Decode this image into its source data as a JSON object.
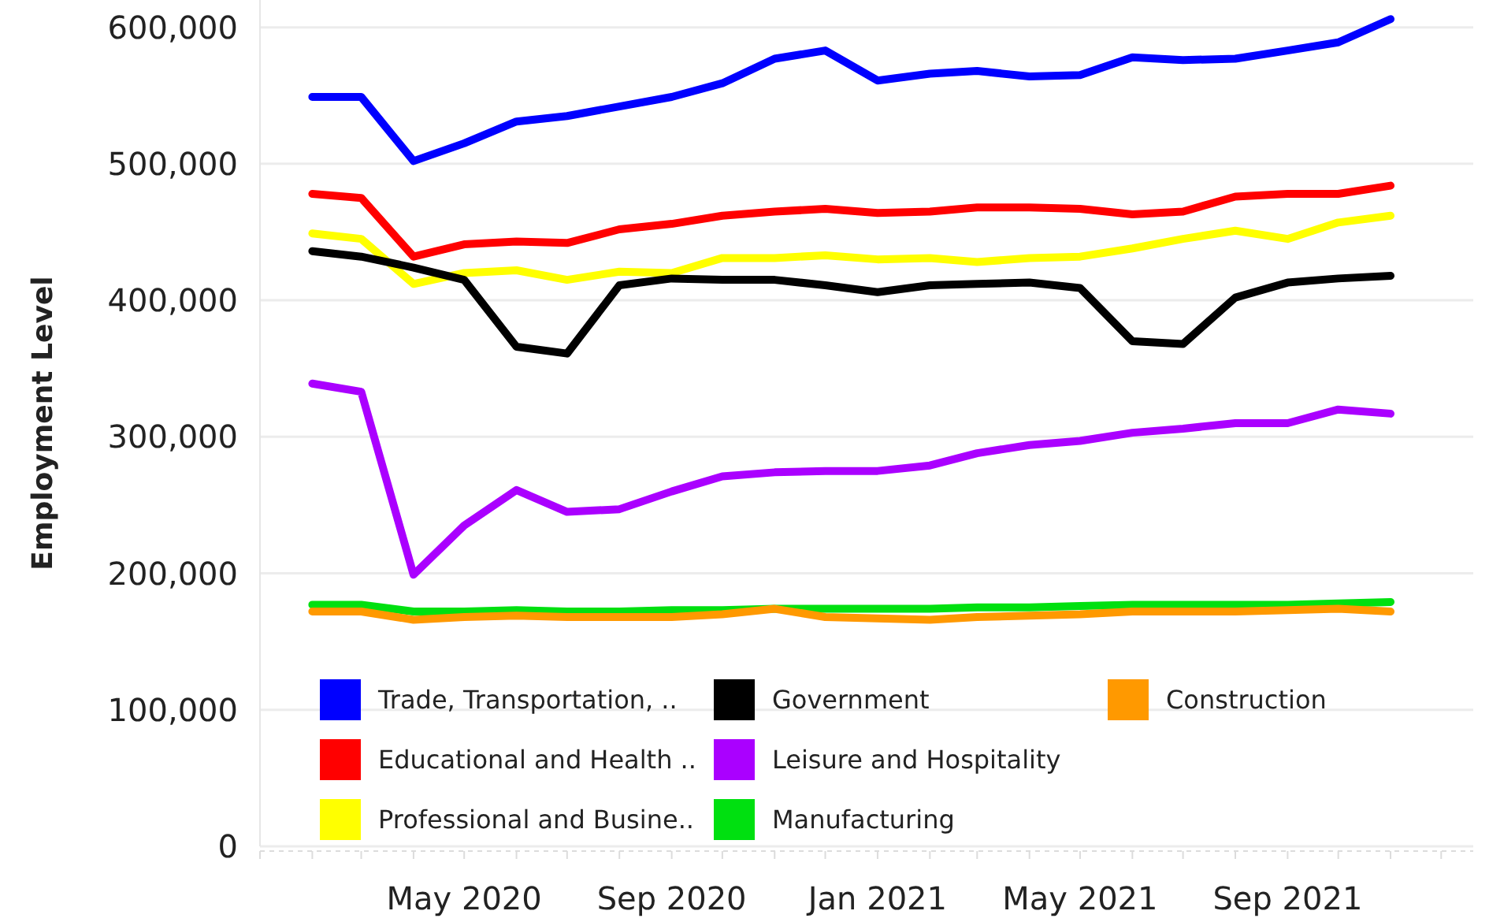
{
  "chart_data": {
    "type": "line",
    "ylabel": "Employment Level",
    "x": [
      "2020-02",
      "2020-03",
      "2020-04",
      "2020-05",
      "2020-06",
      "2020-07",
      "2020-08",
      "2020-09",
      "2020-10",
      "2020-11",
      "2020-12",
      "2021-01",
      "2021-02",
      "2021-03",
      "2021-04",
      "2021-05",
      "2021-06",
      "2021-07",
      "2021-08",
      "2021-09",
      "2021-10",
      "2021-11"
    ],
    "series": [
      {
        "name": "Trade, Transportation, ..",
        "color": "#0000ff",
        "values": [
          549000,
          549000,
          502000,
          515000,
          531000,
          535000,
          542000,
          549000,
          559000,
          577000,
          583000,
          561000,
          566000,
          568000,
          564000,
          565000,
          578000,
          576000,
          577000,
          583000,
          589000,
          606000
        ]
      },
      {
        "name": "Educational and Health ..",
        "color": "#ff0000",
        "values": [
          478000,
          475000,
          432000,
          441000,
          443000,
          442000,
          452000,
          456000,
          462000,
          465000,
          467000,
          464000,
          465000,
          468000,
          468000,
          467000,
          463000,
          465000,
          476000,
          478000,
          478000,
          484000
        ]
      },
      {
        "name": "Professional and Busine..",
        "color": "#ffff00",
        "values": [
          449000,
          445000,
          412000,
          420000,
          422000,
          415000,
          421000,
          420000,
          431000,
          431000,
          433000,
          430000,
          431000,
          428000,
          431000,
          432000,
          438000,
          445000,
          451000,
          445000,
          457000,
          462000
        ]
      },
      {
        "name": "Government",
        "color": "#000000",
        "values": [
          436000,
          432000,
          424000,
          415000,
          366000,
          361000,
          411000,
          416000,
          415000,
          415000,
          411000,
          406000,
          411000,
          412000,
          413000,
          409000,
          370000,
          368000,
          402000,
          413000,
          416000,
          418000
        ]
      },
      {
        "name": "Leisure and Hospitality",
        "color": "#aa00ff",
        "values": [
          339000,
          333000,
          199000,
          235000,
          261000,
          245000,
          247000,
          260000,
          271000,
          274000,
          275000,
          275000,
          279000,
          288000,
          294000,
          297000,
          303000,
          306000,
          310000,
          310000,
          320000,
          317000
        ]
      },
      {
        "name": "Manufacturing",
        "color": "#00e010",
        "values": [
          177000,
          177000,
          172000,
          172000,
          173000,
          172000,
          172000,
          173000,
          173000,
          174000,
          174000,
          174000,
          174000,
          175000,
          175000,
          176000,
          177000,
          177000,
          177000,
          177000,
          178000,
          179000
        ]
      },
      {
        "name": "Construction",
        "color": "#ff9900",
        "values": [
          172000,
          172000,
          166000,
          168000,
          169000,
          168000,
          168000,
          168000,
          170000,
          174000,
          168000,
          167000,
          166000,
          168000,
          169000,
          170000,
          172000,
          172000,
          172000,
          173000,
          174000,
          172000
        ]
      }
    ],
    "xlim": [
      "2020-01-01",
      "2021-12-20"
    ],
    "xticks": [
      {
        "value": "2020-05-01",
        "label": "May 2020"
      },
      {
        "value": "2020-09-01",
        "label": "Sep 2020"
      },
      {
        "value": "2021-01-01",
        "label": "Jan 2021"
      },
      {
        "value": "2021-05-01",
        "label": "May 2021"
      },
      {
        "value": "2021-09-01",
        "label": "Sep 2021"
      }
    ],
    "ylim": [
      0,
      620000
    ],
    "yticks": [
      {
        "value": 0,
        "label": "0"
      },
      {
        "value": 100000,
        "label": "100,000"
      },
      {
        "value": 200000,
        "label": "200,000"
      },
      {
        "value": 300000,
        "label": "300,000"
      },
      {
        "value": 400000,
        "label": "400,000"
      },
      {
        "value": 500000,
        "label": "500,000"
      },
      {
        "value": 600000,
        "label": "600,000"
      }
    ],
    "grid": "y",
    "legend": "bottom",
    "line_style": "solid",
    "marker": "none"
  }
}
